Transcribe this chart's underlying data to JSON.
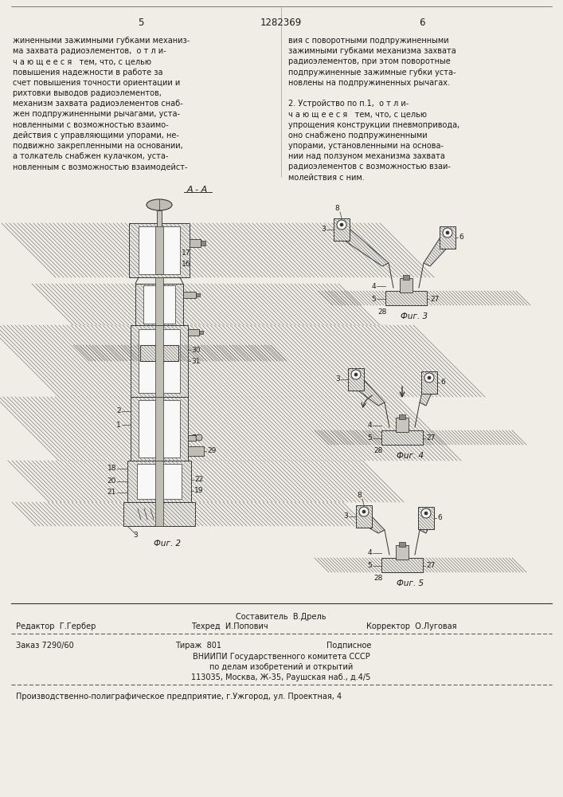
{
  "bg_color": "#f0ede6",
  "text_color": "#1a1a1a",
  "page_number_left": "5",
  "page_number_center": "1282369",
  "page_number_right": "6",
  "left_text": [
    "жиненными зажимными губками механиз-",
    "ма захвата радиоэлементов,  о т л и-",
    "ч а ю щ е е с я   тем, что, с целью",
    "повышения надежности в работе за",
    "счет повышения точности ориентации и",
    "рихтовки выводов радиоэлементов,",
    "механизм захвата радиоэлементов снаб-",
    "жен подпружиненными рычагами, уста-",
    "новленными с возможностью взаимо-",
    "действия с управляющими упорами, не-",
    "подвижно закрепленными на основании,",
    "а толкатель снабжен кулачком, уста-",
    "новленным с возможностью взаимодейст-"
  ],
  "right_text": [
    "вия с поворотными подпружиненными",
    "зажимными губками механизма захвата",
    "радиоэлементов, при этом поворотные",
    "подпружиненные зажимные губки уста-",
    "новлены на подпружиненных рычагах.",
    "",
    "2. Устройство по п.1,  о т л и-",
    "ч а ю щ е е с я   тем, что, с целью",
    "упрощения конструкции пневмопривода,",
    "оно снабжено подпружиненными",
    "упорами, установленными на основа-",
    "нии над ползуном механизма захвата",
    "радиоэлементов с возможностью взаи-",
    "молействия с ним."
  ],
  "footer_sestavitel": "Составитель  В.Дрель",
  "footer_editor": "Редактор  Г.Гербер",
  "footer_tech": "Техред  И.Попович",
  "footer_corrector": "Корректор  О.Луговая",
  "footer_order": "Заказ 7290/60",
  "footer_tirazh": "Тираж  801",
  "footer_podpisnoe": "Подписное",
  "footer_vniiipi": "ВНИИПИ Государственного комитета СССР",
  "footer_po_delam": "по делам изобретений и открытий",
  "footer_address": "113035, Москва, Ж-35, Раушская наб., д.4/5",
  "footer_production": "Производственно-полиграфическое предприятие, г.Ужгород, ул. Проектная, 4"
}
